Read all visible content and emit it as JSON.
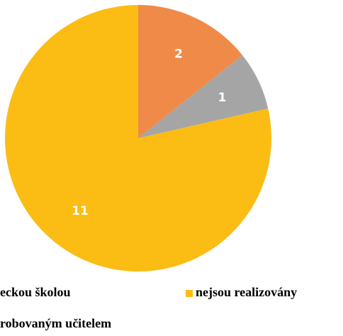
{
  "chart_data": {
    "type": "pie",
    "categories": [
      "eckou školou",
      "robovaným učitelem",
      "nejsou realizovány"
    ],
    "values": [
      2,
      1,
      11
    ],
    "colors": [
      "#F08A48",
      "#A5A5A5",
      "#FBBC14"
    ]
  }
}
